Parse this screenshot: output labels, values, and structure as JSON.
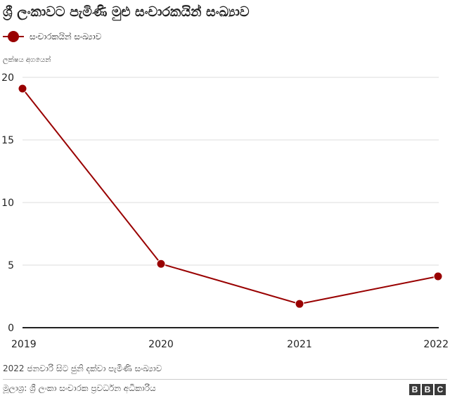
{
  "header": {
    "title": "ශ්‍රී ලංකාවට පැමිණි මුළු සංචාරකයින් සංඛ්‍යාව"
  },
  "legend": {
    "label": "සංචාරකයින් සංඛ්‍යාව",
    "color": "#990000"
  },
  "y_unit_label": "ලක්ෂය අගයෙන්",
  "chart_data": {
    "type": "line",
    "x": [
      "2019",
      "2020",
      "2021",
      "2022"
    ],
    "series": [
      {
        "name": "සංචාරකයින් සංඛ්‍යාව",
        "values": [
          19.1,
          5.1,
          1.9,
          4.1
        ],
        "color": "#990000"
      }
    ],
    "ylabel": "ලක්ෂය අගයෙන්",
    "ylim": [
      0,
      20
    ],
    "yticks": [
      0,
      5,
      10,
      15,
      20
    ],
    "grid": true
  },
  "footer": {
    "note": "2022 ජනවාරි සිට ජුනි දක්වා පැමිණි සංඛ්‍යාව",
    "source": "මූලාශ්‍ර: ශ්‍රී ලංකා සංචාරක ප්‍රවර්ධන අධිකාරිය",
    "logo_letters": [
      "B",
      "B",
      "C"
    ]
  }
}
